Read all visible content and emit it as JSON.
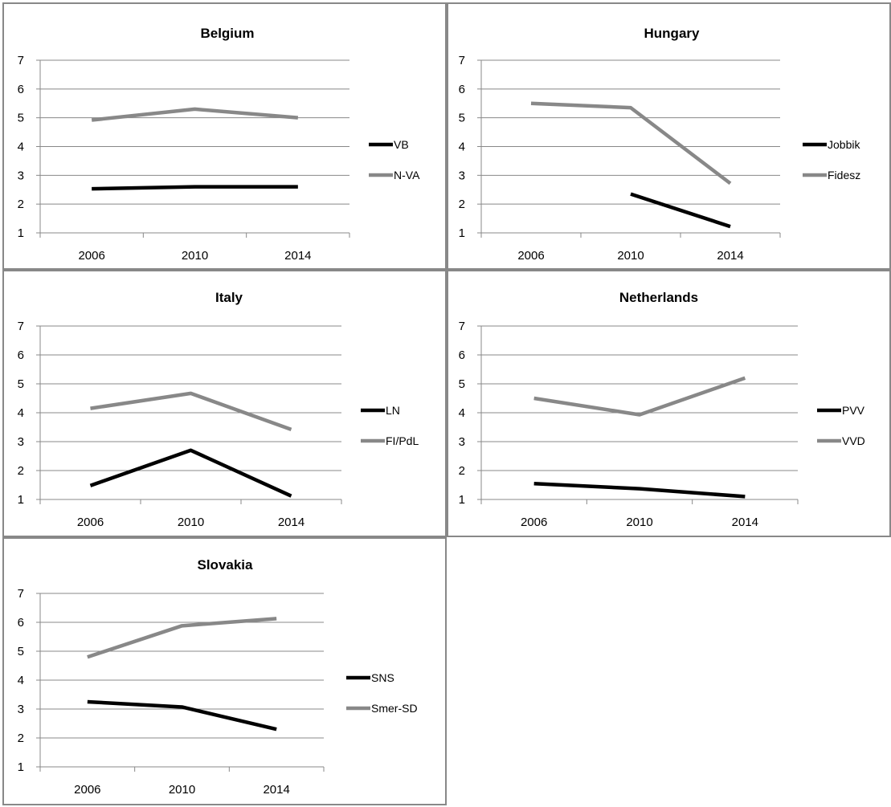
{
  "colors": {
    "dark": "#000000",
    "gray": "#888888",
    "grid": "#888888"
  },
  "chart_data": [
    {
      "type": "line",
      "title": "Belgium",
      "categories": [
        "2006",
        "2010",
        "2014"
      ],
      "ylim": [
        1,
        7
      ],
      "yticks": [
        "1",
        "2",
        "3",
        "4",
        "5",
        "6",
        "7"
      ],
      "grid": true,
      "legend_position": "right",
      "series": [
        {
          "name": "VB",
          "color": "#000000",
          "values": [
            2.53,
            2.6,
            2.6
          ]
        },
        {
          "name": "N-VA",
          "color": "#888888",
          "values": [
            4.92,
            5.3,
            5.0
          ]
        }
      ]
    },
    {
      "type": "line",
      "title": "Hungary",
      "categories": [
        "2006",
        "2010",
        "2014"
      ],
      "ylim": [
        1,
        7
      ],
      "yticks": [
        "1",
        "2",
        "3",
        "4",
        "5",
        "6",
        "7"
      ],
      "grid": true,
      "legend_position": "right",
      "series": [
        {
          "name": "Jobbik",
          "color": "#000000",
          "values": [
            null,
            2.35,
            1.22
          ]
        },
        {
          "name": "Fidesz",
          "color": "#888888",
          "values": [
            5.5,
            5.35,
            2.72
          ]
        }
      ]
    },
    {
      "type": "line",
      "title": "Italy",
      "categories": [
        "2006",
        "2010",
        "2014"
      ],
      "ylim": [
        1,
        7
      ],
      "yticks": [
        "1",
        "2",
        "3",
        "4",
        "5",
        "6",
        "7"
      ],
      "grid": true,
      "legend_position": "right",
      "series": [
        {
          "name": "LN",
          "color": "#000000",
          "values": [
            1.48,
            2.7,
            1.12
          ]
        },
        {
          "name": "FI/PdL",
          "color": "#888888",
          "values": [
            4.15,
            4.67,
            3.42
          ]
        }
      ]
    },
    {
      "type": "line",
      "title": "Netherlands",
      "categories": [
        "2006",
        "2010",
        "2014"
      ],
      "ylim": [
        1,
        7
      ],
      "yticks": [
        "1",
        "2",
        "3",
        "4",
        "5",
        "6",
        "7"
      ],
      "grid": true,
      "legend_position": "right",
      "series": [
        {
          "name": "PVV",
          "color": "#000000",
          "values": [
            1.55,
            1.37,
            1.1
          ]
        },
        {
          "name": "VVD",
          "color": "#888888",
          "values": [
            4.5,
            3.93,
            5.2
          ]
        }
      ]
    },
    {
      "type": "line",
      "title": "Slovakia",
      "categories": [
        "2006",
        "2010",
        "2014"
      ],
      "ylim": [
        1,
        7
      ],
      "yticks": [
        "1",
        "2",
        "3",
        "4",
        "5",
        "6",
        "7"
      ],
      "grid": true,
      "legend_position": "right",
      "series": [
        {
          "name": "SNS",
          "color": "#000000",
          "values": [
            3.25,
            3.07,
            2.3
          ]
        },
        {
          "name": "Smer-SD",
          "color": "#888888",
          "values": [
            4.8,
            5.88,
            6.13
          ]
        }
      ]
    }
  ]
}
